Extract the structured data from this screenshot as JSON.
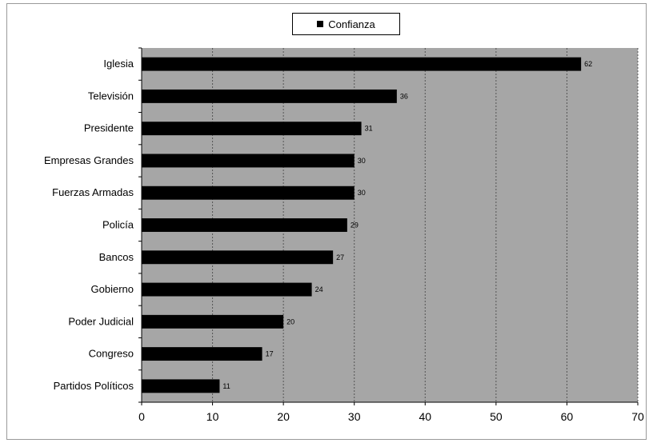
{
  "chart_data": {
    "type": "bar",
    "orientation": "horizontal",
    "categories": [
      "Iglesia",
      "Televisión",
      "Presidente",
      "Empresas Grandes",
      "Fuerzas Armadas",
      "Policía",
      "Bancos",
      "Gobierno",
      "Poder Judicial",
      "Congreso",
      "Partidos Políticos"
    ],
    "series": [
      {
        "name": "Confianza",
        "values": [
          62,
          36,
          31,
          30,
          30,
          29,
          27,
          24,
          20,
          17,
          11
        ]
      }
    ],
    "xlim": [
      0,
      70
    ],
    "xticks": [
      0,
      10,
      20,
      30,
      40,
      50,
      60,
      70
    ],
    "grid": "vertical dashed",
    "legend_position": "top",
    "colors": {
      "bar": "#000000",
      "plot_background": "#a6a6a6",
      "gridline": "#555555"
    }
  }
}
